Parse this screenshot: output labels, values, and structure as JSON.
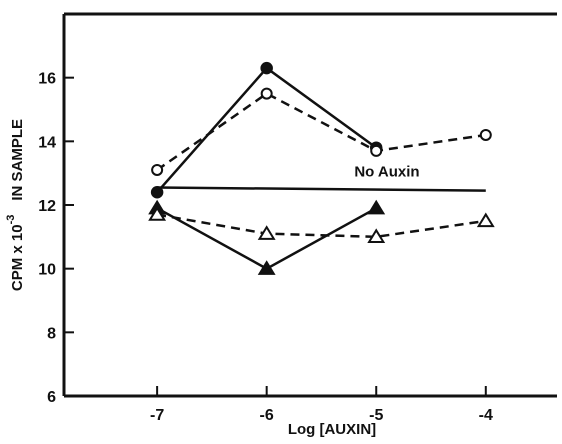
{
  "chart_data": {
    "type": "line",
    "xlabel": "Log  [AUXIN]",
    "ylabel": "CPM x 10⁻³  IN SAMPLE",
    "ylabel_main": "CPM x 10",
    "ylabel_exp": "-3",
    "ylabel_extra": "IN SAMPLE",
    "xlim": [
      -7.85,
      -3.35
    ],
    "ylim": [
      6,
      18
    ],
    "xticks": [
      -7,
      -6,
      -5,
      -4
    ],
    "xtick_labels": [
      "-7",
      "-6",
      "-5",
      "-4"
    ],
    "yticks": [
      6,
      8,
      10,
      12,
      14,
      16
    ],
    "ytick_labels": [
      "6",
      "8",
      "10",
      "12",
      "14",
      "16"
    ],
    "grid": false,
    "annotations": [
      {
        "text": "No Auxin",
        "x": -5.2,
        "y": 12.9
      }
    ],
    "reference_line": {
      "x": [
        -7,
        -4
      ],
      "y": [
        12.55,
        12.45
      ]
    },
    "series": [
      {
        "marker": "filled-circle",
        "dashed": false,
        "x": [
          -7,
          -6,
          -5
        ],
        "y": [
          12.4,
          16.3,
          13.8
        ]
      },
      {
        "marker": "open-circle",
        "dashed": true,
        "x": [
          -7,
          -6,
          -5,
          -4
        ],
        "y": [
          13.1,
          15.5,
          13.7,
          14.2
        ]
      },
      {
        "marker": "filled-triangle",
        "dashed": false,
        "x": [
          -7,
          -6,
          -5
        ],
        "y": [
          11.9,
          10.0,
          11.9
        ]
      },
      {
        "marker": "open-triangle",
        "dashed": true,
        "x": [
          -7,
          -6,
          -5,
          -4
        ],
        "y": [
          11.7,
          11.1,
          11.0,
          11.5
        ]
      }
    ]
  }
}
